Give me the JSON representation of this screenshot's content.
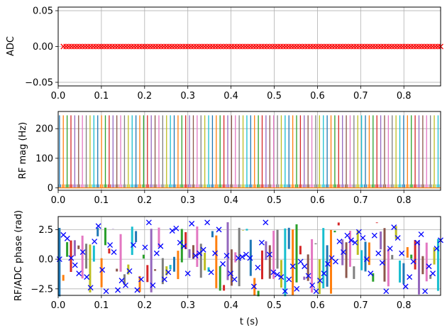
{
  "chart_data": [
    {
      "type": "scatter",
      "ylabel": "ADC",
      "xlim": [
        0,
        0.885
      ],
      "ylim": [
        -0.055,
        0.055
      ],
      "x_ticks": [
        "0.0",
        "0.1",
        "0.2",
        "0.3",
        "0.4",
        "0.5",
        "0.6",
        "0.7",
        "0.8"
      ],
      "y_ticks": [
        "0.05",
        "0.00",
        "−0.05"
      ],
      "y_tick_values": [
        0.05,
        0.0,
        -0.05
      ],
      "grid": true,
      "marker": "x",
      "marker_color": "#ff0000",
      "series": [
        {
          "x_start": 0.012,
          "x_end": 0.885,
          "num_points": 140,
          "y": 0.0
        }
      ]
    },
    {
      "type": "line",
      "ylabel": "RF mag (Hz)",
      "xlim": [
        0,
        0.885
      ],
      "ylim": [
        -8,
        258
      ],
      "x_ticks": [
        "0.0",
        "0.1",
        "0.2",
        "0.3",
        "0.4",
        "0.5",
        "0.6",
        "0.7",
        "0.8"
      ],
      "y_ticks": [
        "200",
        "100",
        "0"
      ],
      "y_tick_values": [
        200,
        100,
        0
      ],
      "grid": true,
      "pulse_amplitude": 245,
      "pulse_count": 100,
      "pulse_start": 0.003,
      "pulse_spacing": 0.00885,
      "side_lobe_level": 12
    },
    {
      "type": "line",
      "ylabel": "RF/ADC phase (rad)",
      "xlabel": "t (s)",
      "xlim": [
        0,
        0.885
      ],
      "ylim": [
        -3.05,
        3.6
      ],
      "x_ticks": [
        "0.0",
        "0.1",
        "0.2",
        "0.3",
        "0.4",
        "0.5",
        "0.6",
        "0.7",
        "0.8"
      ],
      "y_ticks": [
        "2.5",
        "0.0",
        "−2.5"
      ],
      "y_tick_values": [
        2.5,
        0.0,
        -2.5
      ],
      "grid": true,
      "marker": "x",
      "marker_color": "#0000ff",
      "rf_phase_range": [
        -3.1416,
        3.1416
      ],
      "adc_phase": {
        "x": [
          0.003,
          0.012,
          0.021,
          0.03,
          0.039,
          0.048,
          0.057,
          0.066,
          0.075,
          0.084,
          0.093,
          0.102,
          0.111,
          0.12,
          0.129,
          0.138,
          0.147,
          0.156,
          0.165,
          0.174,
          0.183,
          0.192,
          0.201,
          0.21,
          0.219,
          0.228,
          0.237,
          0.246,
          0.255,
          0.264,
          0.273,
          0.282,
          0.291,
          0.3,
          0.309,
          0.318,
          0.327,
          0.336,
          0.345,
          0.354,
          0.363,
          0.372,
          0.381,
          0.39,
          0.399,
          0.408,
          0.417,
          0.426,
          0.435,
          0.444,
          0.453,
          0.462,
          0.471,
          0.48,
          0.489,
          0.498,
          0.507,
          0.516,
          0.525,
          0.534,
          0.543,
          0.552,
          0.561,
          0.57,
          0.579,
          0.588,
          0.597,
          0.606,
          0.615,
          0.624,
          0.633,
          0.642,
          0.651,
          0.66,
          0.669,
          0.678,
          0.687,
          0.696,
          0.705,
          0.714,
          0.723,
          0.732,
          0.741,
          0.75,
          0.759,
          0.768,
          0.777,
          0.786,
          0.795,
          0.804,
          0.813,
          0.822,
          0.831,
          0.84,
          0.849,
          0.858,
          0.867,
          0.876,
          0.885
        ],
        "y": [
          0.0,
          2.05,
          1.75,
          0.1,
          -0.5,
          -1.2,
          0.6,
          -1.5,
          -2.4,
          1.5,
          2.8,
          -0.9,
          -2.7,
          1.2,
          0.6,
          -2.6,
          -1.8,
          -2.2,
          -1.0,
          1.2,
          -2.6,
          -1.7,
          1.0,
          3.1,
          -2.2,
          0.5,
          1.1,
          -1.7,
          -1.1,
          2.4,
          2.6,
          1.4,
          1.1,
          -1.2,
          3.0,
          0.3,
          0.5,
          0.8,
          3.1,
          -1.1,
          0.5,
          2.5,
          -0.4,
          0.3,
          -1.2,
          -1.7,
          0.1,
          0.2,
          0.4,
          0.1,
          -2.3,
          -0.7,
          1.4,
          3.1,
          0.4,
          -1.1,
          -1.3,
          -1.5,
          -2.7,
          -1.7,
          -0.6,
          -2.5,
          -0.2,
          -0.6,
          -1.4,
          -2.2,
          -2.7,
          -1.8,
          -1.2,
          -0.4,
          0.1,
          -0.2,
          1.5,
          0.6,
          2.0,
          1.6,
          1.4,
          2.3,
          1.8,
          0.0,
          -1.2,
          2.0,
          0.5,
          -0.3,
          -2.7,
          0.9,
          2.7,
          1.8,
          0.5,
          -2.3,
          -1.5,
          -0.2,
          1.4,
          2.1,
          -2.7,
          -0.6,
          -1.2,
          0.9,
          1.6
        ]
      },
      "rf_pulses": {
        "count": 100,
        "start": 0.003,
        "spacing": 0.00885
      }
    }
  ]
}
